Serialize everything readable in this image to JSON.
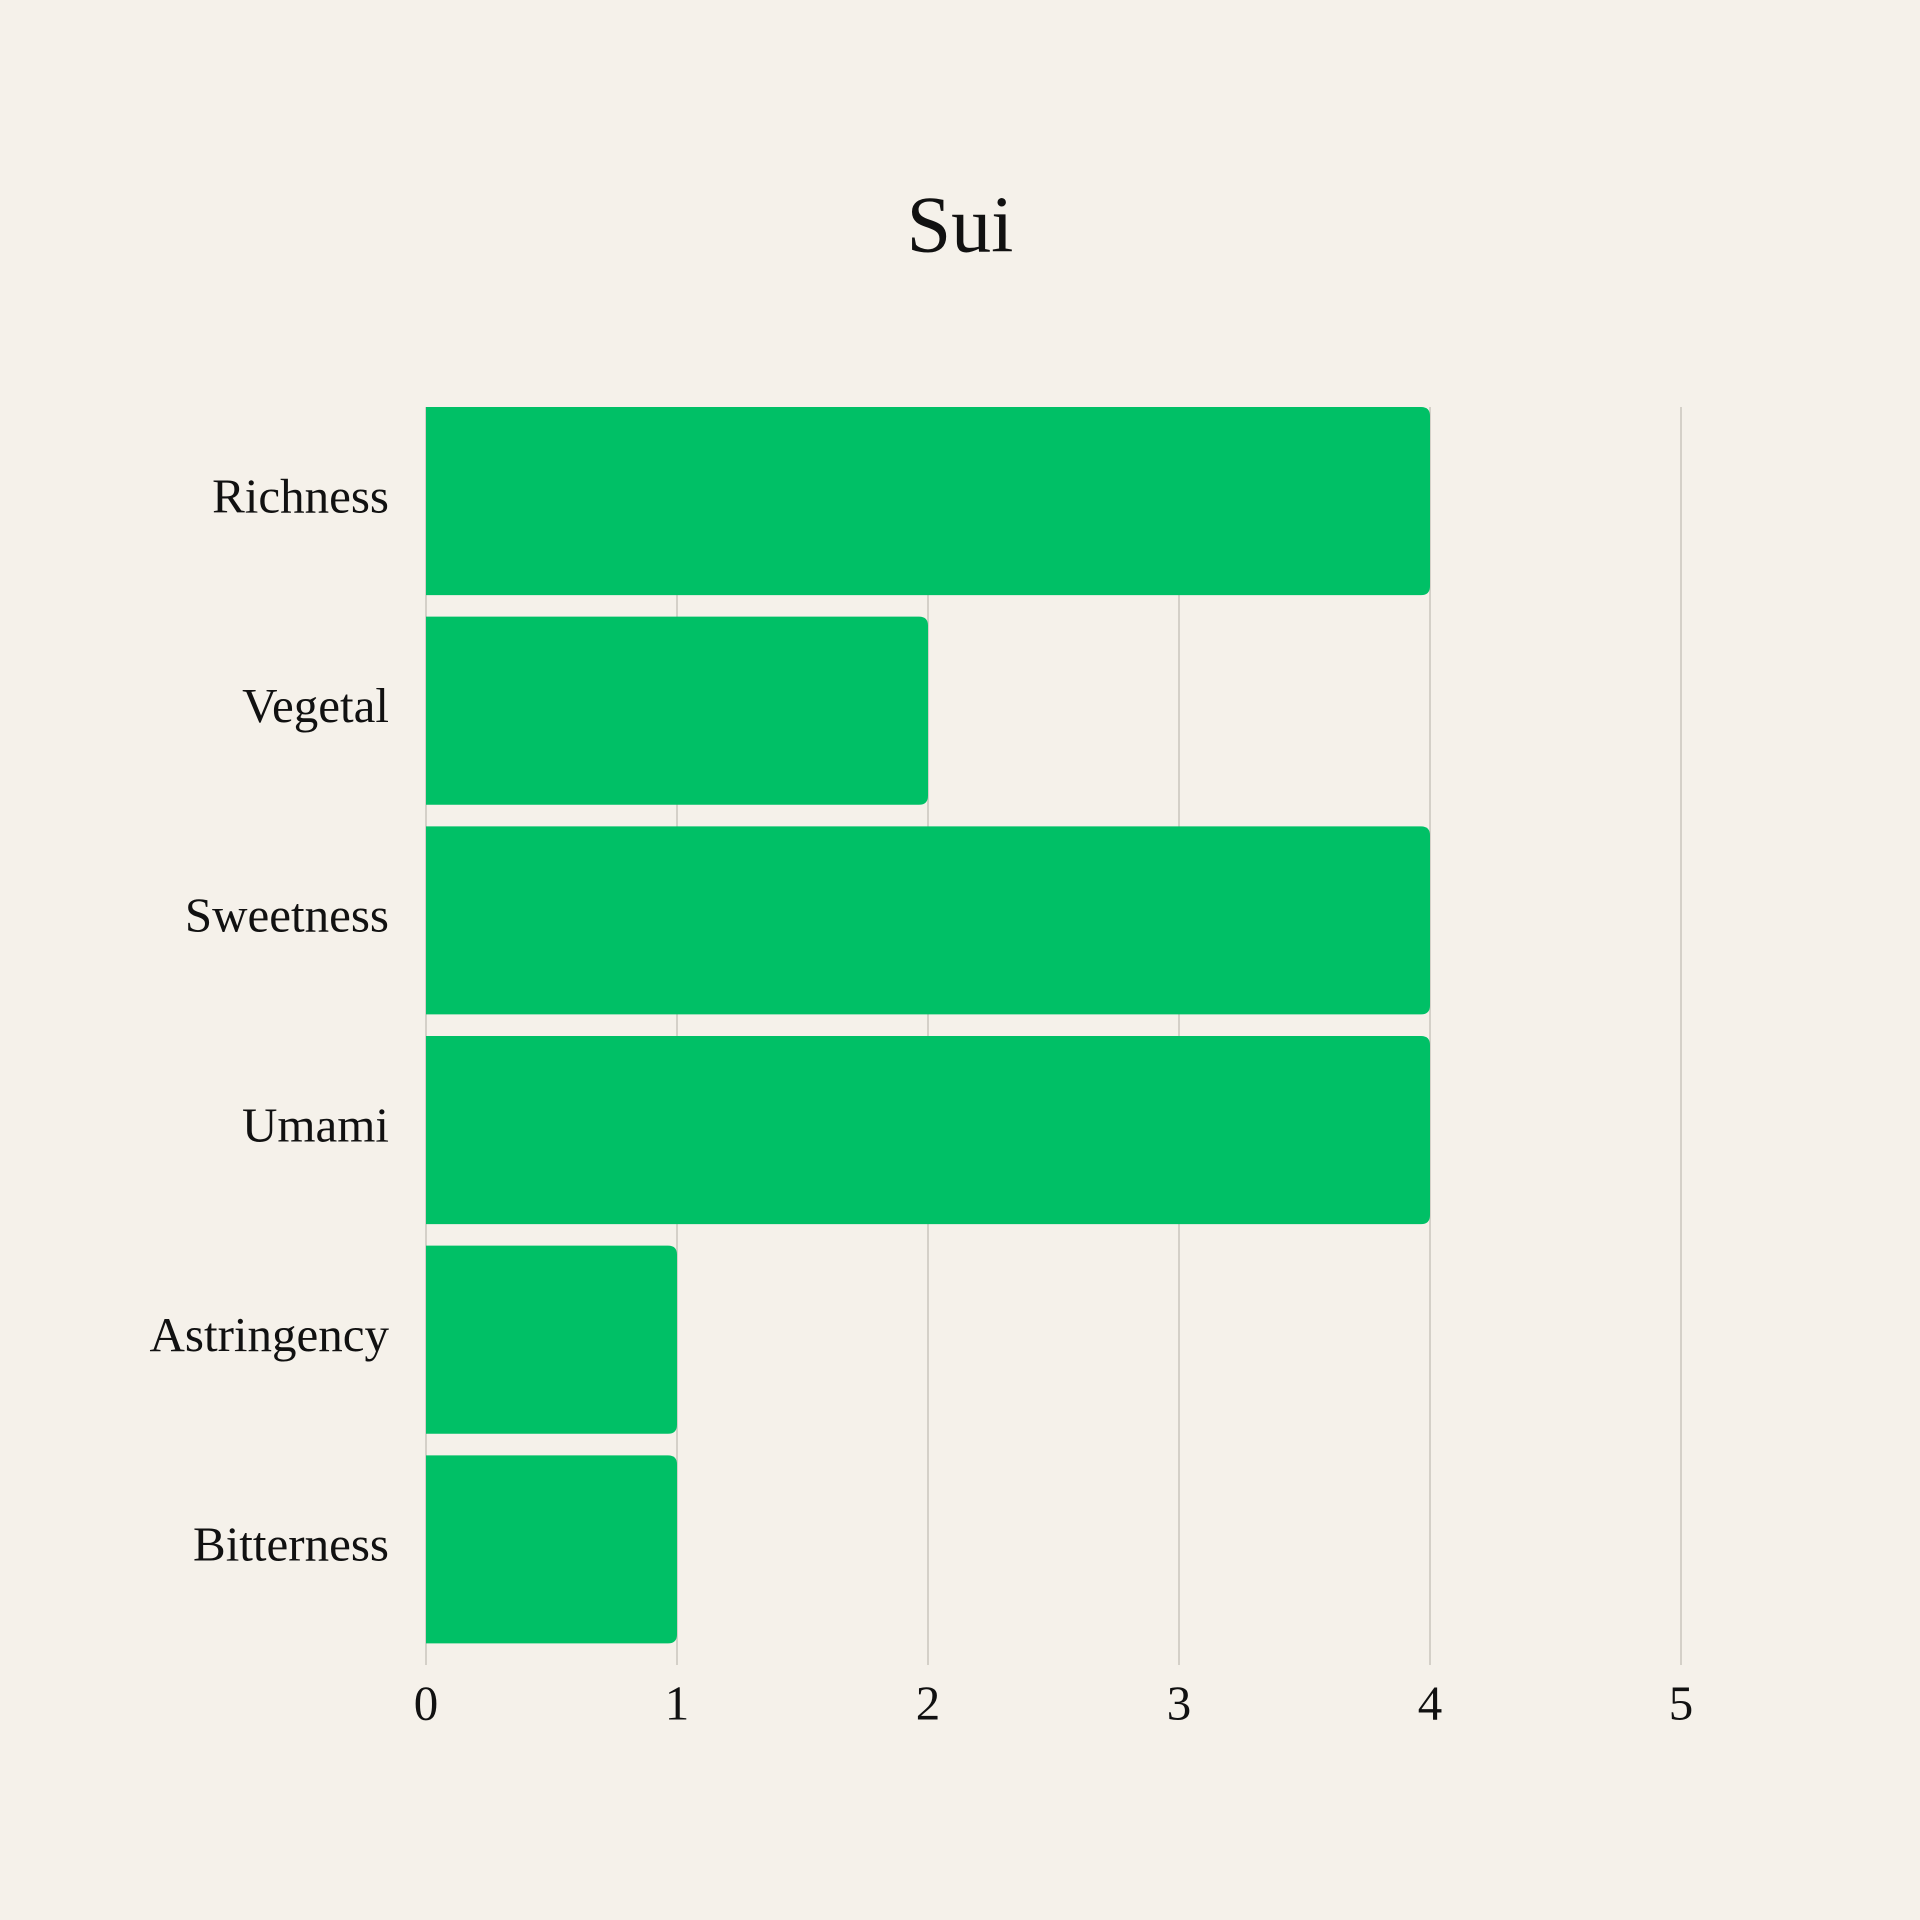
{
  "chart_data": {
    "type": "bar",
    "orientation": "horizontal",
    "title": "Sui",
    "categories": [
      "Richness",
      "Vegetal",
      "Sweetness",
      "Umami",
      "Astringency",
      "Bitterness"
    ],
    "values": [
      4,
      2,
      4,
      4,
      1,
      1
    ],
    "color": "#00c066",
    "xlim": [
      0,
      5
    ],
    "xticks": [
      0,
      1,
      2,
      3,
      4,
      5
    ],
    "grid": true
  }
}
